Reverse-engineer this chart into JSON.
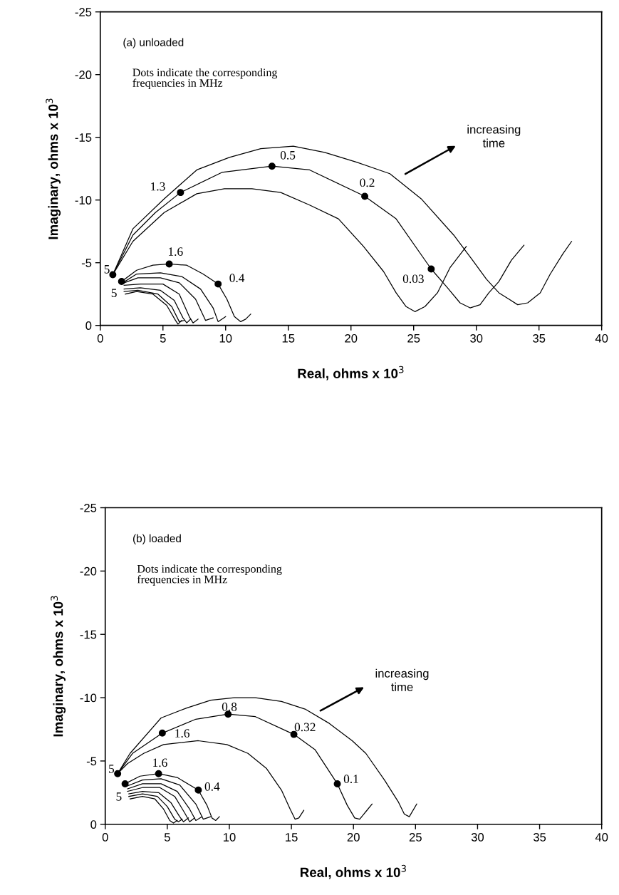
{
  "chart_data": [
    {
      "type": "line",
      "xlabel": "Real, ohms x 10$^{3}$",
      "ylabel": "Imaginary, ohms x 10$^{3}$",
      "xlim": [
        0,
        40
      ],
      "ylim": [
        0,
        -25
      ],
      "xticks": [
        0,
        5,
        10,
        15,
        20,
        25,
        30,
        35,
        40
      ],
      "yticks": [
        0,
        -5,
        -10,
        -15,
        -20,
        -25
      ],
      "series": [
        {
          "color": "#000000",
          "x": [
            1.0,
            2.6,
            5.1,
            7.7,
            10.3,
            12.8,
            15.4,
            17.9,
            20.5,
            23.1,
            25.6,
            28.2,
            29.7,
            30.8,
            31.8,
            32.6,
            33.3,
            34.1,
            35.1,
            35.9,
            36.9,
            37.6
          ],
          "values": [
            -4.05,
            -7.7,
            -10.1,
            -12.4,
            -13.4,
            -14.1,
            -14.3,
            -13.8,
            -13.0,
            -12.1,
            -10.1,
            -7.2,
            -5.2,
            -3.7,
            -2.6,
            -2.1,
            -1.65,
            -1.8,
            -2.6,
            -4.1,
            -5.7,
            -6.7
          ]
        },
        {
          "color": "#000000",
          "x": [
            1.0,
            2.6,
            4.4,
            6.4,
            9.7,
            13.7,
            16.7,
            21.1,
            23.6,
            26.4,
            27.7,
            28.7,
            29.5,
            30.3,
            31.0,
            31.8,
            32.8,
            33.8
          ],
          "values": [
            -4.05,
            -7.2,
            -9.0,
            -10.6,
            -12.2,
            -12.7,
            -12.4,
            -10.3,
            -8.5,
            -4.5,
            -3.0,
            -1.8,
            -1.4,
            -1.65,
            -2.6,
            -3.5,
            -5.2,
            -6.4
          ]
        },
        {
          "color": "#000000",
          "x": [
            1.0,
            2.6,
            5.1,
            7.7,
            9.9,
            12.1,
            14.4,
            16.7,
            19.0,
            21.0,
            22.6,
            23.6,
            24.4,
            25.1,
            25.9,
            26.9,
            27.9,
            29.2
          ],
          "values": [
            -4.05,
            -6.7,
            -9.0,
            -10.5,
            -10.9,
            -10.9,
            -10.6,
            -9.6,
            -8.5,
            -6.3,
            -4.3,
            -2.6,
            -1.5,
            -1.1,
            -1.5,
            -2.6,
            -4.6,
            -6.3
          ]
        },
        {
          "color": "#000000",
          "x": [
            1.7,
            2.9,
            4.2,
            5.5,
            6.9,
            8.2,
            9.4,
            10.1,
            10.7,
            11.2,
            11.6,
            12.0
          ],
          "values": [
            -3.5,
            -4.4,
            -4.8,
            -4.9,
            -4.8,
            -4.1,
            -3.3,
            -2.1,
            -0.7,
            -0.3,
            -0.5,
            -0.9
          ]
        },
        {
          "color": "#000000",
          "x": [
            1.8,
            2.9,
            4.8,
            6.5,
            8.0,
            9.0,
            9.4,
            10.0
          ],
          "values": [
            -3.4,
            -4.1,
            -4.2,
            -3.9,
            -2.9,
            -1.4,
            -0.3,
            -0.7
          ]
        },
        {
          "color": "#000000",
          "x": [
            1.9,
            3.0,
            4.8,
            6.3,
            7.6,
            8.4,
            9.0
          ],
          "values": [
            -3.4,
            -3.8,
            -3.8,
            -3.4,
            -2.1,
            -0.4,
            -0.6
          ]
        },
        {
          "color": "#000000",
          "x": [
            1.9,
            3.2,
            5.0,
            6.3,
            7.1,
            7.4,
            7.8
          ],
          "values": [
            -3.2,
            -3.3,
            -3.3,
            -2.5,
            -0.7,
            -0.2,
            -0.5
          ]
        },
        {
          "color": "#000000",
          "x": [
            1.9,
            3.2,
            4.8,
            5.9,
            6.6,
            6.9,
            7.2
          ],
          "values": [
            -2.9,
            -3.0,
            -2.8,
            -2.0,
            -0.6,
            -0.2,
            -0.5
          ]
        },
        {
          "color": "#000000",
          "x": [
            1.9,
            3.0,
            4.6,
            5.7,
            6.3,
            6.7
          ],
          "values": [
            -2.7,
            -2.8,
            -2.5,
            -1.5,
            -0.3,
            -0.4
          ]
        },
        {
          "color": "#000000",
          "x": [
            2.0,
            2.9,
            4.2,
            5.3,
            6.0,
            6.2,
            6.5
          ],
          "values": [
            -2.5,
            -2.7,
            -2.5,
            -1.6,
            -0.4,
            -0.1,
            -0.4
          ]
        },
        {
          "type": "scatter",
          "marker": "circle",
          "color": "#000000",
          "x": [
            1.0,
            6.4,
            13.7,
            21.1,
            26.4,
            1.7,
            5.5,
            9.4
          ],
          "values": [
            -4.05,
            -10.6,
            -12.7,
            -10.3,
            -4.5,
            -3.5,
            -4.9,
            -3.3
          ]
        }
      ],
      "annotations": [
        "(a) unloaded",
        "Dots indicate the corresponding\nfrequencies in MHz",
        "increasing\ntime",
        {
          "text": "5",
          "x": 1.0,
          "y": -4.05
        },
        {
          "text": "1.3",
          "x": 6.4,
          "y": -10.6
        },
        {
          "text": "0.5",
          "x": 13.7,
          "y": -12.7
        },
        {
          "text": "0.2",
          "x": 21.1,
          "y": -10.3
        },
        {
          "text": "0.03",
          "x": 26.4,
          "y": -4.5
        },
        {
          "text": "5",
          "x": 1.7,
          "y": -3.5
        },
        {
          "text": "1.6",
          "x": 5.5,
          "y": -4.9
        },
        {
          "text": "0.4",
          "x": 9.4,
          "y": -3.3
        }
      ]
    },
    {
      "type": "line",
      "xlabel": "Real, ohms x 10$^{3}$",
      "ylabel": "Imaginary, ohms x 10$^{3}$",
      "xlim": [
        0,
        40
      ],
      "ylim": [
        0,
        -25
      ],
      "xticks": [
        0,
        5,
        10,
        15,
        20,
        25,
        30,
        35,
        40
      ],
      "yticks": [
        0,
        -5,
        -10,
        -15,
        -20,
        -25
      ],
      "series": [
        {
          "color": "#000000",
          "x": [
            1.0,
            2.0,
            4.5,
            6.6,
            8.5,
            10.4,
            12.1,
            14.2,
            16.1,
            18.0,
            19.9,
            21.0,
            22.5,
            23.6,
            24.1,
            24.5,
            25.1
          ],
          "values": [
            -4.0,
            -5.6,
            -8.4,
            -9.2,
            -9.8,
            -10.0,
            -10.0,
            -9.7,
            -9.1,
            -8.0,
            -6.6,
            -5.6,
            -3.5,
            -1.8,
            -0.8,
            -0.6,
            -1.6
          ]
        },
        {
          "color": "#000000",
          "x": [
            1.0,
            2.2,
            4.6,
            7.3,
            9.9,
            12.1,
            15.2,
            16.9,
            18.7,
            19.5,
            20.1,
            20.5,
            21.0,
            21.5
          ],
          "values": [
            -4.0,
            -5.6,
            -7.2,
            -8.3,
            -8.7,
            -8.5,
            -7.1,
            -5.9,
            -3.2,
            -1.5,
            -0.5,
            -0.4,
            -1.0,
            -1.6
          ]
        },
        {
          "color": "#000000",
          "x": [
            1.0,
            1.8,
            3.1,
            4.7,
            7.5,
            9.8,
            11.5,
            13.0,
            14.2,
            14.9,
            15.3,
            15.6,
            16.0
          ],
          "values": [
            -4.0,
            -4.8,
            -5.6,
            -6.3,
            -6.6,
            -6.3,
            -5.6,
            -4.4,
            -2.7,
            -1.2,
            -0.4,
            -0.5,
            -1.1
          ]
        },
        {
          "color": "#000000",
          "x": [
            1.6,
            2.8,
            4.3,
            5.8,
            7.5,
            8.2,
            8.6,
            8.9,
            9.2
          ],
          "values": [
            -3.2,
            -3.8,
            -4.0,
            -3.7,
            -2.7,
            -1.5,
            -0.5,
            -0.3,
            -0.6
          ]
        },
        {
          "color": "#000000",
          "x": [
            1.7,
            3.0,
            4.5,
            6.0,
            7.3,
            7.9,
            8.5
          ],
          "values": [
            -3.0,
            -3.5,
            -3.6,
            -3.1,
            -1.6,
            -0.4,
            -0.6
          ]
        },
        {
          "color": "#000000",
          "x": [
            1.8,
            3.0,
            4.5,
            5.8,
            6.8,
            7.3,
            7.8
          ],
          "values": [
            -2.8,
            -3.2,
            -3.2,
            -2.6,
            -1.2,
            -0.3,
            -0.6
          ]
        },
        {
          "color": "#000000",
          "x": [
            1.8,
            3.0,
            4.4,
            5.6,
            6.4,
            6.8,
            7.2
          ],
          "values": [
            -2.6,
            -2.9,
            -2.9,
            -2.2,
            -0.9,
            -0.2,
            -0.5
          ]
        },
        {
          "color": "#000000",
          "x": [
            1.9,
            3.0,
            4.3,
            5.3,
            6.0,
            6.3,
            6.7
          ],
          "values": [
            -2.4,
            -2.6,
            -2.5,
            -1.7,
            -0.6,
            -0.2,
            -0.5
          ]
        },
        {
          "color": "#000000",
          "x": [
            1.9,
            3.0,
            4.2,
            5.0,
            5.6,
            5.9,
            6.2
          ],
          "values": [
            -2.2,
            -2.4,
            -2.2,
            -1.4,
            -0.4,
            -0.2,
            -0.4
          ]
        },
        {
          "color": "#000000",
          "x": [
            2.0,
            3.0,
            4.0,
            4.7,
            5.2,
            5.5,
            5.8
          ],
          "values": [
            -2.0,
            -2.2,
            -2.0,
            -1.2,
            -0.3,
            -0.1,
            -0.3
          ]
        },
        {
          "type": "scatter",
          "marker": "circle",
          "color": "#000000",
          "x": [
            1.0,
            4.6,
            9.9,
            15.2,
            18.7,
            1.6,
            4.3,
            7.5
          ],
          "values": [
            -4.0,
            -7.2,
            -8.7,
            -7.1,
            -3.2,
            -3.2,
            -4.0,
            -2.7
          ]
        }
      ],
      "annotations": [
        "(b) loaded",
        "Dots indicate the corresponding\nfrequencies in MHz",
        "increasing\ntime",
        {
          "text": "5",
          "x": 1.0,
          "y": -4.0
        },
        {
          "text": "1.6",
          "x": 4.6,
          "y": -7.2
        },
        {
          "text": "0.8",
          "x": 9.9,
          "y": -8.7
        },
        {
          "text": "0.32",
          "x": 15.2,
          "y": -7.1
        },
        {
          "text": "0.1",
          "x": 18.7,
          "y": -3.2
        },
        {
          "text": "5",
          "x": 1.6,
          "y": -3.2
        },
        {
          "text": "1.6",
          "x": 4.3,
          "y": -4.0
        },
        {
          "text": "0.4",
          "x": 7.5,
          "y": -2.7
        }
      ]
    }
  ]
}
